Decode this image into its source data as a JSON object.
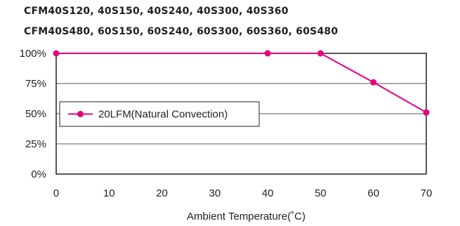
{
  "chart_data": {
    "type": "line",
    "title_lines": [
      "CFM40S120, 40S150, 40S240, 40S300, 40S360",
      "CFM40S480, 60S150, 60S240, 60S300, 60S360, 60S480"
    ],
    "xlabel": "Ambient Temperature(˚C)",
    "ylabel": "",
    "x_ticks": [
      "0",
      "10",
      "20",
      "30",
      "40",
      "50",
      "60",
      "70"
    ],
    "y_ticks": [
      "0%",
      "25%",
      "50%",
      "75%",
      "100%"
    ],
    "xlim": [
      0,
      70
    ],
    "ylim": [
      0,
      100
    ],
    "grid": "horizontal",
    "legend_position": "left",
    "series": [
      {
        "name": "20LFM(Natural Convection)",
        "color": "#e5007e",
        "x": [
          0,
          40,
          50,
          60,
          70
        ],
        "y": [
          100,
          100,
          100,
          76,
          51
        ]
      }
    ]
  }
}
